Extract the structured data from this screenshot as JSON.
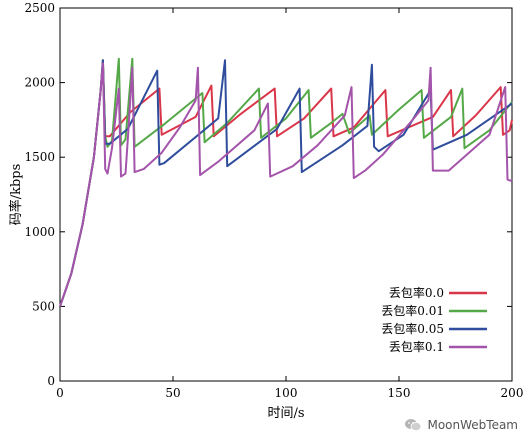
{
  "chart_data": {
    "type": "line",
    "title": "",
    "xlabel": "时间/s",
    "ylabel": "码率/kbps",
    "xlim": [
      0,
      200
    ],
    "ylim": [
      0,
      2500
    ],
    "xticks": [
      0,
      50,
      100,
      150,
      200
    ],
    "yticks": [
      0,
      500,
      1000,
      1500,
      2000,
      2500
    ],
    "grid": false,
    "legend_position": "bottom-right",
    "series": [
      {
        "name": "丢包率0.0",
        "color": "#d9364a",
        "points": [
          [
            0,
            500
          ],
          [
            5,
            720
          ],
          [
            10,
            1050
          ],
          [
            15,
            1500
          ],
          [
            18,
            1950
          ],
          [
            19,
            2150
          ],
          [
            20,
            1640
          ],
          [
            22,
            1640
          ],
          [
            31,
            1800
          ],
          [
            44,
            1960
          ],
          [
            45,
            1650
          ],
          [
            60,
            1770
          ],
          [
            67,
            1980
          ],
          [
            68,
            1640
          ],
          [
            80,
            1790
          ],
          [
            95,
            1960
          ],
          [
            96,
            1640
          ],
          [
            108,
            1760
          ],
          [
            120,
            1960
          ],
          [
            121,
            1640
          ],
          [
            130,
            1700
          ],
          [
            144,
            1950
          ],
          [
            145,
            1640
          ],
          [
            165,
            1770
          ],
          [
            173,
            1950
          ],
          [
            174,
            1640
          ],
          [
            184,
            1780
          ],
          [
            195,
            1970
          ],
          [
            196,
            1650
          ],
          [
            199,
            1680
          ],
          [
            200,
            1750
          ]
        ]
      },
      {
        "name": "丢包率0.01",
        "color": "#55a848",
        "points": [
          [
            0,
            500
          ],
          [
            5,
            720
          ],
          [
            10,
            1050
          ],
          [
            15,
            1500
          ],
          [
            18,
            1950
          ],
          [
            19,
            2150
          ],
          [
            20,
            1640
          ],
          [
            21,
            1570
          ],
          [
            23,
            1610
          ],
          [
            26,
            2160
          ],
          [
            27,
            1580
          ],
          [
            29,
            1620
          ],
          [
            32,
            2160
          ],
          [
            33,
            1570
          ],
          [
            46,
            1720
          ],
          [
            63,
            1930
          ],
          [
            64,
            1600
          ],
          [
            74,
            1730
          ],
          [
            88,
            1960
          ],
          [
            89,
            1630
          ],
          [
            100,
            1760
          ],
          [
            110,
            1950
          ],
          [
            111,
            1630
          ],
          [
            120,
            1730
          ],
          [
            125,
            1790
          ],
          [
            128,
            1660
          ],
          [
            137,
            1780
          ],
          [
            138,
            1650
          ],
          [
            150,
            1820
          ],
          [
            160,
            1950
          ],
          [
            161,
            1630
          ],
          [
            173,
            1770
          ],
          [
            178,
            1960
          ],
          [
            179,
            1560
          ],
          [
            190,
            1680
          ],
          [
            200,
            1870
          ]
        ]
      },
      {
        "name": "丢包率0.05",
        "color": "#2f4d9c",
        "points": [
          [
            0,
            500
          ],
          [
            5,
            720
          ],
          [
            10,
            1050
          ],
          [
            15,
            1500
          ],
          [
            18,
            1950
          ],
          [
            19,
            2150
          ],
          [
            20,
            1590
          ],
          [
            22,
            1590
          ],
          [
            30,
            1690
          ],
          [
            43,
            2080
          ],
          [
            44,
            1450
          ],
          [
            46,
            1460
          ],
          [
            70,
            1760
          ],
          [
            73,
            2150
          ],
          [
            74,
            1440
          ],
          [
            96,
            1690
          ],
          [
            106,
            1960
          ],
          [
            107,
            1400
          ],
          [
            125,
            1580
          ],
          [
            136,
            1710
          ],
          [
            138,
            2120
          ],
          [
            139,
            1570
          ],
          [
            141,
            1540
          ],
          [
            152,
            1650
          ],
          [
            164,
            1950
          ],
          [
            165,
            1550
          ],
          [
            180,
            1650
          ],
          [
            200,
            1860
          ]
        ]
      },
      {
        "name": "丢包率0.1",
        "color": "#a454aa",
        "points": [
          [
            0,
            500
          ],
          [
            5,
            720
          ],
          [
            10,
            1050
          ],
          [
            15,
            1500
          ],
          [
            18,
            1950
          ],
          [
            19,
            2130
          ],
          [
            20,
            1420
          ],
          [
            21,
            1390
          ],
          [
            23,
            1560
          ],
          [
            26,
            1960
          ],
          [
            27,
            1370
          ],
          [
            29,
            1390
          ],
          [
            30,
            1620
          ],
          [
            32,
            2100
          ],
          [
            33,
            1400
          ],
          [
            37,
            1420
          ],
          [
            45,
            1530
          ],
          [
            53,
            1700
          ],
          [
            60,
            1880
          ],
          [
            61,
            2100
          ],
          [
            62,
            1380
          ],
          [
            70,
            1470
          ],
          [
            86,
            1680
          ],
          [
            92,
            1860
          ],
          [
            93,
            1370
          ],
          [
            103,
            1440
          ],
          [
            114,
            1580
          ],
          [
            126,
            1780
          ],
          [
            129,
            1970
          ],
          [
            130,
            1360
          ],
          [
            135,
            1410
          ],
          [
            143,
            1520
          ],
          [
            156,
            1750
          ],
          [
            163,
            1880
          ],
          [
            164,
            2100
          ],
          [
            165,
            1410
          ],
          [
            172,
            1410
          ],
          [
            190,
            1650
          ],
          [
            197,
            1970
          ],
          [
            198,
            1350
          ],
          [
            200,
            1340
          ]
        ]
      }
    ]
  },
  "watermark": {
    "icon": "wechat-icon",
    "text": "MoonWebTeam"
  }
}
